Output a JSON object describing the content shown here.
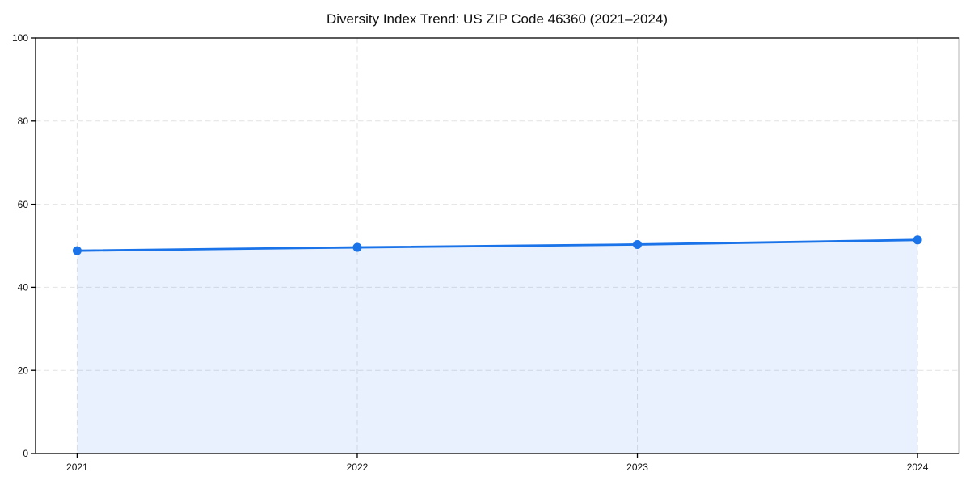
{
  "chart_data": {
    "type": "area",
    "title": "Diversity Index Trend: US ZIP Code 46360 (2021–2024)",
    "categories": [
      "2021",
      "2022",
      "2023",
      "2024"
    ],
    "series": [
      {
        "name": "Diversity Index",
        "values": [
          48.8,
          49.6,
          50.3,
          51.4
        ]
      }
    ],
    "xlabel": "",
    "ylabel": "",
    "ylim": [
      0,
      100
    ],
    "yticks": [
      0,
      20,
      40,
      60,
      80,
      100
    ],
    "grid": true,
    "grid_style": "dashed",
    "legend": "none",
    "colors": {
      "line": "#1a73e8",
      "marker": "#1a73e8",
      "fill": "#1a73e8",
      "fill_opacity": 0.1,
      "gridline": "#e2e2e2",
      "axis": "#000000",
      "background": "#ffffff",
      "text": "#111111"
    }
  }
}
